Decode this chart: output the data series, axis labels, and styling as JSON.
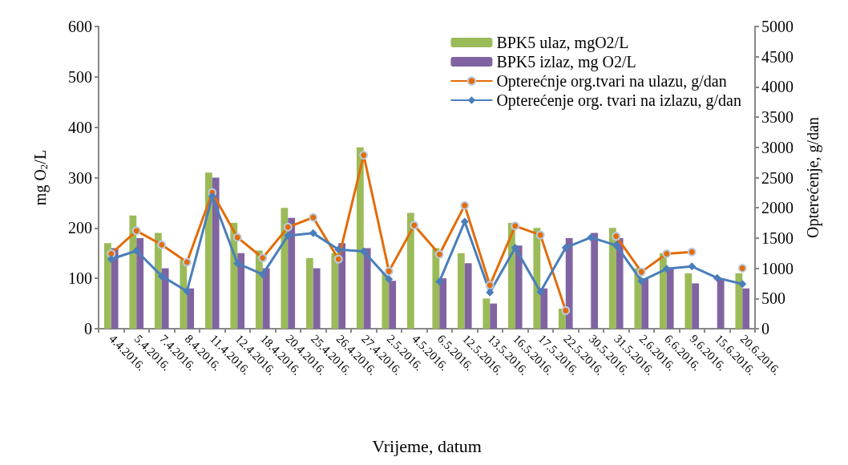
{
  "chart_data": {
    "type": "bar",
    "xlabel": "Vrijeme, datum",
    "ylabel": "mg O$_{2}$/L",
    "y2label": "Opterećenje, g/dan",
    "categories": [
      "4.4.2016.",
      "5.4.2016.",
      "7.4.2016.",
      "8.4.2016.",
      "11.4.2016.",
      "12.4.2016.",
      "18.4.2016.",
      "20.4.2016.",
      "25.4.2016.",
      "26.4.2016.",
      "27.4.2016.",
      "2.5.2016.",
      "4.5.2016.",
      "6.5.2016.",
      "12.5.2016.",
      "13.5.2016.",
      "16.5.2016.",
      "17.5.2016.",
      "22.5.2016.",
      "30.5.2016.",
      "31.5.2016.",
      "2.6.2016.",
      "6.6.2016.",
      "9.6.2016.",
      "15.6.2016.",
      "20.6.2016."
    ],
    "series": [
      {
        "name": "BPK5 ulaz, mgO2/L",
        "color": "#9bbb59",
        "values": [
          170,
          225,
          190,
          137,
          310,
          210,
          155,
          240,
          140,
          150,
          360,
          110,
          230,
          160,
          150,
          60,
          210,
          200,
          40,
          null,
          200,
          120,
          150,
          110,
          null,
          110
        ]
      },
      {
        "name": "BPK5 izlaz, mg O2/L",
        "color": "#8064a2",
        "values": [
          160,
          180,
          120,
          80,
          300,
          150,
          120,
          220,
          120,
          170,
          160,
          95,
          null,
          100,
          130,
          50,
          165,
          80,
          180,
          190,
          180,
          100,
          120,
          90,
          100,
          80
        ]
      },
      {
        "name": "Opterećnje org.tvari na ulazu, g/dan",
        "type": "line",
        "axis": "y2",
        "marker": "circle",
        "color": "#e36c09",
        "values": [
          1240,
          1620,
          1390,
          1100,
          2250,
          1510,
          1170,
          1680,
          1840,
          1150,
          2870,
          950,
          1710,
          1230,
          2040,
          720,
          1700,
          1550,
          300,
          null,
          1530,
          940,
          1240,
          1270,
          null,
          1000
        ]
      },
      {
        "name": "Opterećenje org. tvari na izlazu, g/dan",
        "type": "line",
        "axis": "y2",
        "marker": "diamond",
        "color": "#4a7ebb",
        "values": [
          1150,
          1290,
          870,
          620,
          2190,
          1080,
          900,
          1540,
          1580,
          1310,
          1280,
          820,
          null,
          780,
          1770,
          600,
          1340,
          610,
          1340,
          1510,
          1380,
          790,
          990,
          1030,
          840,
          740
        ]
      }
    ],
    "ylim": [
      0,
      600
    ],
    "yticks": [
      0,
      100,
      200,
      300,
      400,
      500,
      600
    ],
    "y2lim": [
      0,
      5000
    ],
    "y2ticks": [
      0,
      500,
      1000,
      1500,
      2000,
      2500,
      3000,
      3500,
      4000,
      4500,
      5000
    ],
    "grid": false,
    "legend": "top right"
  }
}
